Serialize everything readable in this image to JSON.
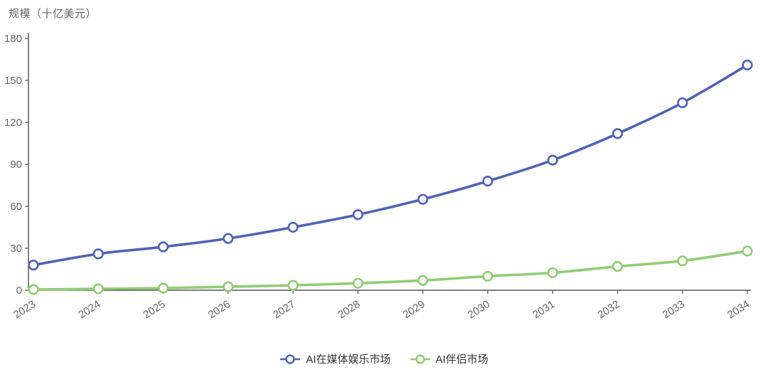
{
  "chart_data": {
    "type": "line",
    "title": "",
    "ylabel": "规模（十亿美元）",
    "xlabel": "",
    "categories": [
      "2023",
      "2024",
      "2025",
      "2026",
      "2027",
      "2028",
      "2029",
      "2030",
      "2031",
      "2032",
      "2033",
      "2034"
    ],
    "ylim": [
      0,
      180
    ],
    "yticks": [
      0,
      30,
      60,
      90,
      120,
      150,
      180
    ],
    "grid": false,
    "smooth": true,
    "legend_position": "bottom",
    "axis_color": "#333333",
    "label_color": "#666666",
    "marker_fill": "#ffffff",
    "series": [
      {
        "name": "AI在媒体娱乐市场",
        "color": "#4f63b4",
        "values": [
          18,
          26,
          31,
          37,
          45,
          54,
          65,
          78,
          93,
          112,
          134,
          161
        ]
      },
      {
        "name": "AI伴侣市场",
        "color": "#91cc75",
        "values": [
          0.5,
          1,
          1.5,
          2.5,
          3.5,
          5,
          7,
          10,
          12.5,
          17,
          21,
          28
        ]
      }
    ]
  }
}
